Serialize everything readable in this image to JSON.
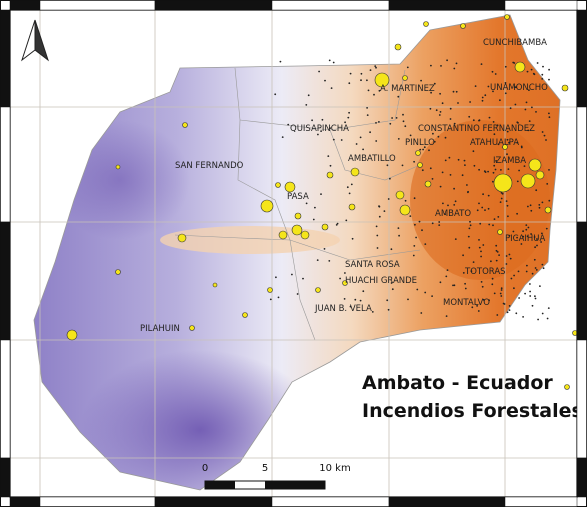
{
  "map": {
    "title": {
      "line1": "Ambato - Ecuador",
      "line2": "Incendios Forestales"
    },
    "places": [
      "CUNCHIBAMBA",
      "A. MARTINEZ",
      "UNAMONCHO",
      "QUISAPINCHA",
      "CONSTANTINO FERNANDEZ",
      "PINLLO",
      "ATAHUALPA",
      "SAN FERNANDO",
      "AMBATILLO",
      "IZAMBA",
      "PASA",
      "AMBATO",
      "PICAIHUA",
      "SANTA ROSA",
      "TOTORAS",
      "HUACHI GRANDE",
      "MONTALVO",
      "JUAN B. VELA",
      "PILAHUIN"
    ],
    "scale_bar": [
      "0",
      "5",
      "10 km"
    ]
  }
}
